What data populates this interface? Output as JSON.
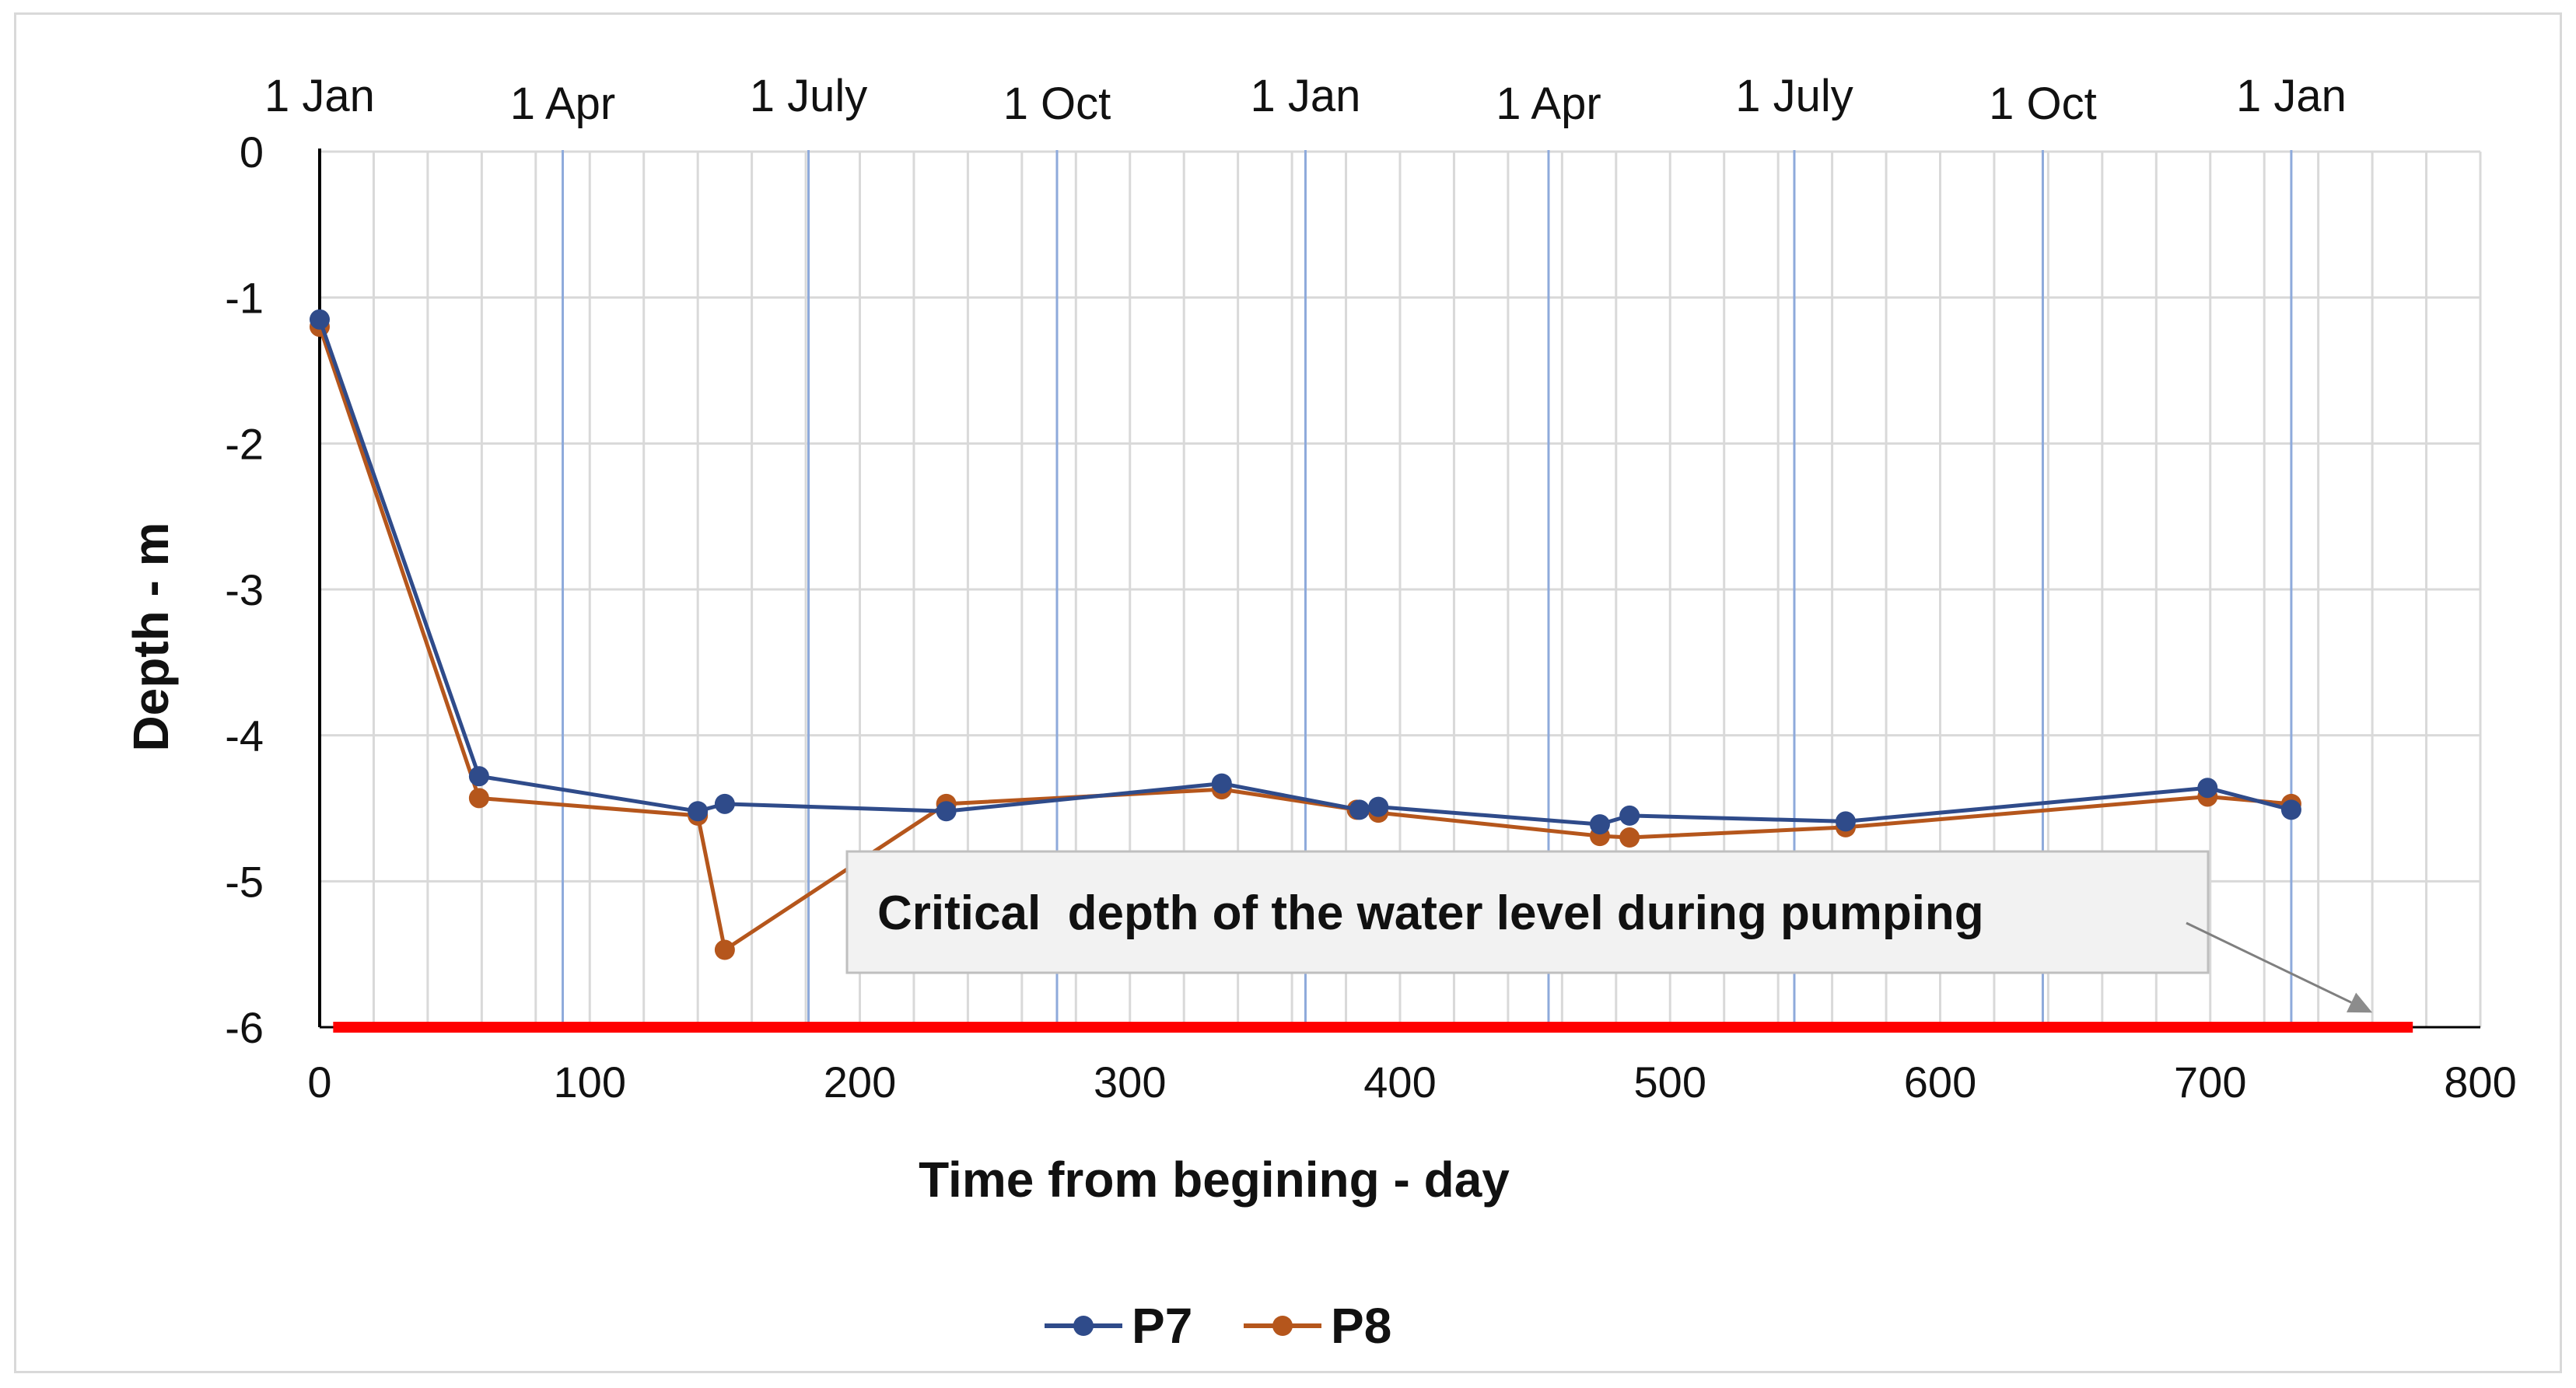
{
  "chart_data": {
    "type": "line",
    "xlabel": "Time from begining - day",
    "ylabel": "Depth - m",
    "xlim": [
      0,
      800
    ],
    "ylim": [
      -6,
      0
    ],
    "xticks": [
      0,
      100,
      200,
      300,
      400,
      500,
      600,
      700,
      800
    ],
    "yticks": [
      0,
      -1,
      -2,
      -3,
      -4,
      -5,
      -6
    ],
    "grid": true,
    "month_markers": [
      {
        "label": "1 Jan",
        "day": 0
      },
      {
        "label": "1 Apr",
        "day": 90
      },
      {
        "label": "1 July",
        "day": 181
      },
      {
        "label": "1 Oct",
        "day": 273
      },
      {
        "label": "1 Jan",
        "day": 365
      },
      {
        "label": "1 Apr",
        "day": 455
      },
      {
        "label": "1 July",
        "day": 546
      },
      {
        "label": "1 Oct",
        "day": 638
      },
      {
        "label": "1 Jan",
        "day": 730
      }
    ],
    "series": [
      {
        "name": "P7",
        "color": "#2f4b8a",
        "x": [
          0,
          59,
          140,
          150,
          232,
          334,
          385,
          392,
          474,
          485,
          565,
          699,
          730
        ],
        "y": [
          -1.15,
          -4.28,
          -4.52,
          -4.47,
          -4.52,
          -4.33,
          -4.51,
          -4.49,
          -4.61,
          -4.55,
          -4.59,
          -4.36,
          -4.51
        ]
      },
      {
        "name": "P8",
        "color": "#b5561c",
        "x": [
          0,
          59,
          140,
          150,
          232,
          334,
          384,
          392,
          474,
          485,
          565,
          699,
          730
        ],
        "y": [
          -1.2,
          -4.43,
          -4.55,
          -5.47,
          -4.47,
          -4.37,
          -4.51,
          -4.53,
          -4.69,
          -4.7,
          -4.63,
          -4.42,
          -4.47
        ]
      }
    ],
    "critical_line": {
      "y": -6,
      "x_start": 5,
      "x_end": 775,
      "color": "#ff0000"
    },
    "annotation": {
      "text": "Critical  depth of the water level during pumping",
      "arrow_to_day": 760,
      "arrow_to_depth": -5.9
    },
    "legend": {
      "position": "bottom-center",
      "entries": [
        "P7",
        "P8"
      ]
    }
  }
}
